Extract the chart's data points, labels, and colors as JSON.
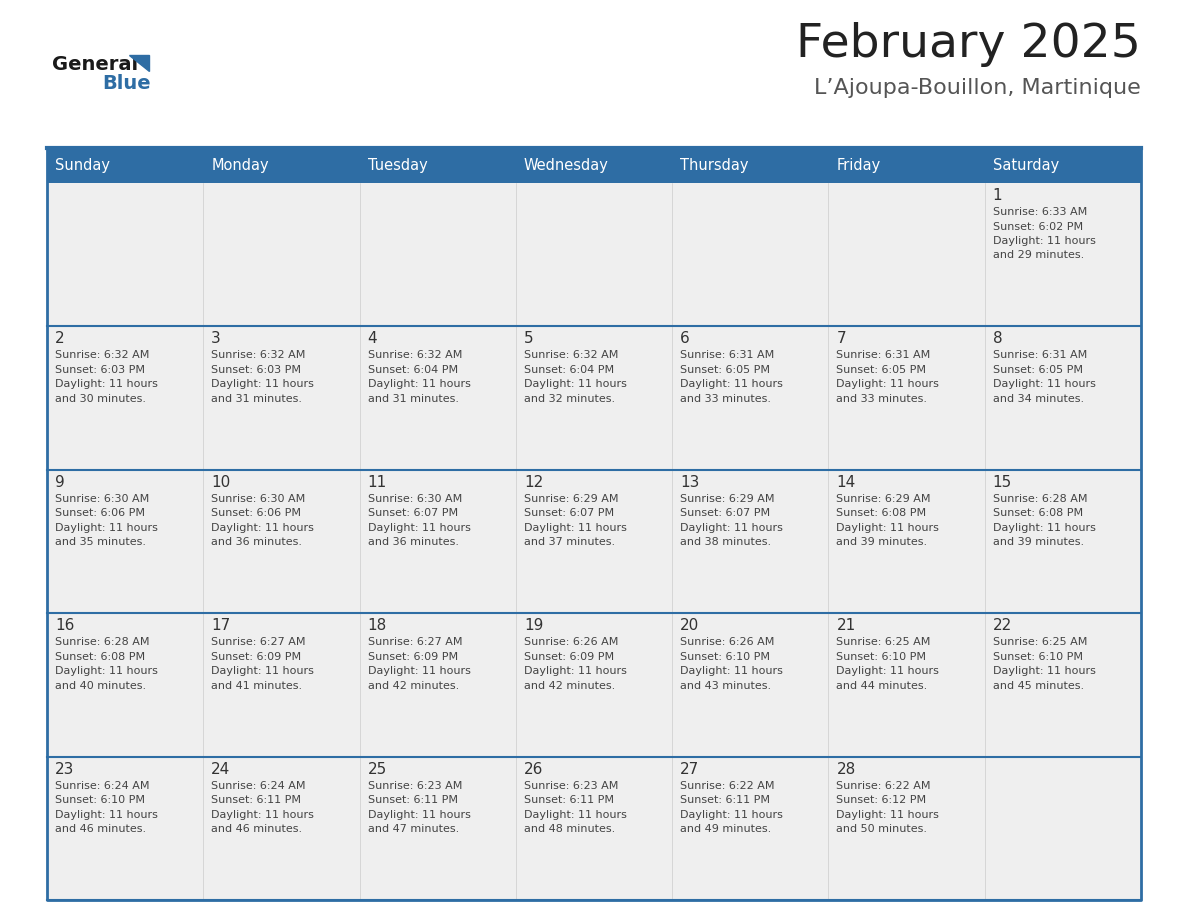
{
  "title": "February 2025",
  "subtitle": "L’Ajoupa-Bouillon, Martinique",
  "days_of_week": [
    "Sunday",
    "Monday",
    "Tuesday",
    "Wednesday",
    "Thursday",
    "Friday",
    "Saturday"
  ],
  "header_bg": "#2E6DA4",
  "header_text": "#FFFFFF",
  "cell_bg": "#EFEFEF",
  "cell_bg_white": "#FFFFFF",
  "border_color": "#2E6DA4",
  "title_color": "#222222",
  "subtitle_color": "#555555",
  "logo_general_color": "#1a1a1a",
  "logo_blue_color": "#2E6DA4",
  "calendar": [
    [
      null,
      null,
      null,
      null,
      null,
      null,
      1
    ],
    [
      2,
      3,
      4,
      5,
      6,
      7,
      8
    ],
    [
      9,
      10,
      11,
      12,
      13,
      14,
      15
    ],
    [
      16,
      17,
      18,
      19,
      20,
      21,
      22
    ],
    [
      23,
      24,
      25,
      26,
      27,
      28,
      null
    ]
  ],
  "cell_data": {
    "1": {
      "sunrise": "6:33 AM",
      "sunset": "6:02 PM",
      "daylight": "11 hours and 29 minutes."
    },
    "2": {
      "sunrise": "6:32 AM",
      "sunset": "6:03 PM",
      "daylight": "11 hours and 30 minutes."
    },
    "3": {
      "sunrise": "6:32 AM",
      "sunset": "6:03 PM",
      "daylight": "11 hours and 31 minutes."
    },
    "4": {
      "sunrise": "6:32 AM",
      "sunset": "6:04 PM",
      "daylight": "11 hours and 31 minutes."
    },
    "5": {
      "sunrise": "6:32 AM",
      "sunset": "6:04 PM",
      "daylight": "11 hours and 32 minutes."
    },
    "6": {
      "sunrise": "6:31 AM",
      "sunset": "6:05 PM",
      "daylight": "11 hours and 33 minutes."
    },
    "7": {
      "sunrise": "6:31 AM",
      "sunset": "6:05 PM",
      "daylight": "11 hours and 33 minutes."
    },
    "8": {
      "sunrise": "6:31 AM",
      "sunset": "6:05 PM",
      "daylight": "11 hours and 34 minutes."
    },
    "9": {
      "sunrise": "6:30 AM",
      "sunset": "6:06 PM",
      "daylight": "11 hours and 35 minutes."
    },
    "10": {
      "sunrise": "6:30 AM",
      "sunset": "6:06 PM",
      "daylight": "11 hours and 36 minutes."
    },
    "11": {
      "sunrise": "6:30 AM",
      "sunset": "6:07 PM",
      "daylight": "11 hours and 36 minutes."
    },
    "12": {
      "sunrise": "6:29 AM",
      "sunset": "6:07 PM",
      "daylight": "11 hours and 37 minutes."
    },
    "13": {
      "sunrise": "6:29 AM",
      "sunset": "6:07 PM",
      "daylight": "11 hours and 38 minutes."
    },
    "14": {
      "sunrise": "6:29 AM",
      "sunset": "6:08 PM",
      "daylight": "11 hours and 39 minutes."
    },
    "15": {
      "sunrise": "6:28 AM",
      "sunset": "6:08 PM",
      "daylight": "11 hours and 39 minutes."
    },
    "16": {
      "sunrise": "6:28 AM",
      "sunset": "6:08 PM",
      "daylight": "11 hours and 40 minutes."
    },
    "17": {
      "sunrise": "6:27 AM",
      "sunset": "6:09 PM",
      "daylight": "11 hours and 41 minutes."
    },
    "18": {
      "sunrise": "6:27 AM",
      "sunset": "6:09 PM",
      "daylight": "11 hours and 42 minutes."
    },
    "19": {
      "sunrise": "6:26 AM",
      "sunset": "6:09 PM",
      "daylight": "11 hours and 42 minutes."
    },
    "20": {
      "sunrise": "6:26 AM",
      "sunset": "6:10 PM",
      "daylight": "11 hours and 43 minutes."
    },
    "21": {
      "sunrise": "6:25 AM",
      "sunset": "6:10 PM",
      "daylight": "11 hours and 44 minutes."
    },
    "22": {
      "sunrise": "6:25 AM",
      "sunset": "6:10 PM",
      "daylight": "11 hours and 45 minutes."
    },
    "23": {
      "sunrise": "6:24 AM",
      "sunset": "6:10 PM",
      "daylight": "11 hours and 46 minutes."
    },
    "24": {
      "sunrise": "6:24 AM",
      "sunset": "6:11 PM",
      "daylight": "11 hours and 46 minutes."
    },
    "25": {
      "sunrise": "6:23 AM",
      "sunset": "6:11 PM",
      "daylight": "11 hours and 47 minutes."
    },
    "26": {
      "sunrise": "6:23 AM",
      "sunset": "6:11 PM",
      "daylight": "11 hours and 48 minutes."
    },
    "27": {
      "sunrise": "6:22 AM",
      "sunset": "6:11 PM",
      "daylight": "11 hours and 49 minutes."
    },
    "28": {
      "sunrise": "6:22 AM",
      "sunset": "6:12 PM",
      "daylight": "11 hours and 50 minutes."
    }
  },
  "figsize": [
    11.88,
    9.18
  ],
  "dpi": 100
}
